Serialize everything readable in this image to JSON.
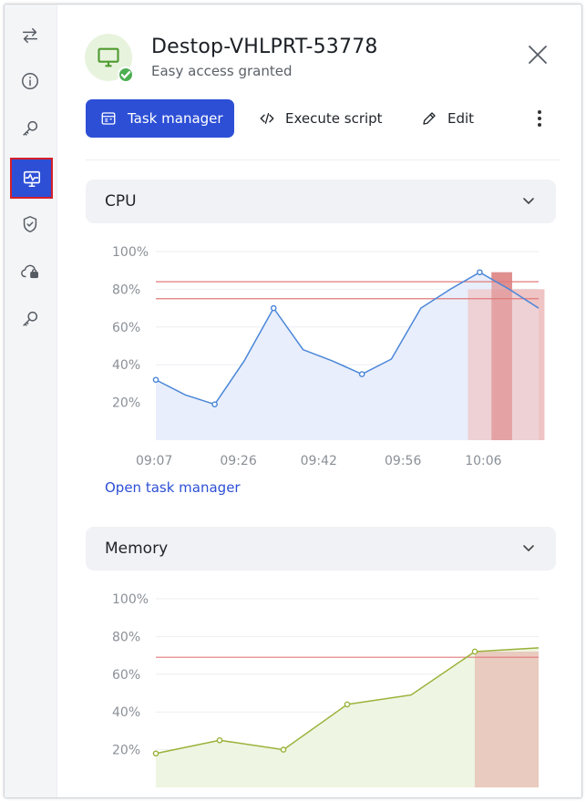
{
  "device": {
    "name": "Destop-VHLPRT-53778",
    "status": "Easy access granted"
  },
  "rail": {
    "items": [
      {
        "name": "switch-icon"
      },
      {
        "name": "info-icon"
      },
      {
        "name": "key-icon"
      },
      {
        "name": "monitor-activity-icon",
        "active": true
      },
      {
        "name": "shield-check-icon"
      },
      {
        "name": "cloud-lock-icon"
      },
      {
        "name": "key-icon"
      }
    ]
  },
  "toolbar": {
    "task_manager_label": "Task manager",
    "execute_script_label": "Execute script",
    "edit_label": "Edit"
  },
  "colors": {
    "primary": "#2d4fd6",
    "cpu_line": "#4a86d8",
    "memory_line": "#9ab23a",
    "alert": "#e07a7a"
  },
  "sections": {
    "cpu_title": "CPU",
    "memory_title": "Memory"
  },
  "open_task_manager_label": "Open task manager",
  "chart_data": [
    {
      "type": "area",
      "title": "CPU",
      "y_ticks": [
        "100%",
        "80%",
        "60%",
        "40%",
        "20%"
      ],
      "x_ticks": [
        "09:07",
        "09:26",
        "09:42",
        "09:56",
        "10:06"
      ],
      "ylim": [
        0,
        100
      ],
      "points": [
        32,
        24,
        19,
        42,
        70,
        48,
        42,
        35,
        43,
        70,
        80,
        89,
        80,
        70
      ],
      "marked_points": [
        0,
        2,
        4,
        7,
        11
      ],
      "thresholds": [
        84,
        75
      ],
      "grid": true
    },
    {
      "type": "area",
      "title": "Memory",
      "y_ticks": [
        "100%",
        "80%",
        "60%",
        "40%",
        "20%"
      ],
      "ylim": [
        0,
        100
      ],
      "points": [
        18,
        25,
        20,
        44,
        49,
        72,
        74
      ],
      "marked_points": [
        0,
        1,
        2,
        3,
        5
      ],
      "thresholds": [
        69
      ],
      "grid": true
    }
  ]
}
